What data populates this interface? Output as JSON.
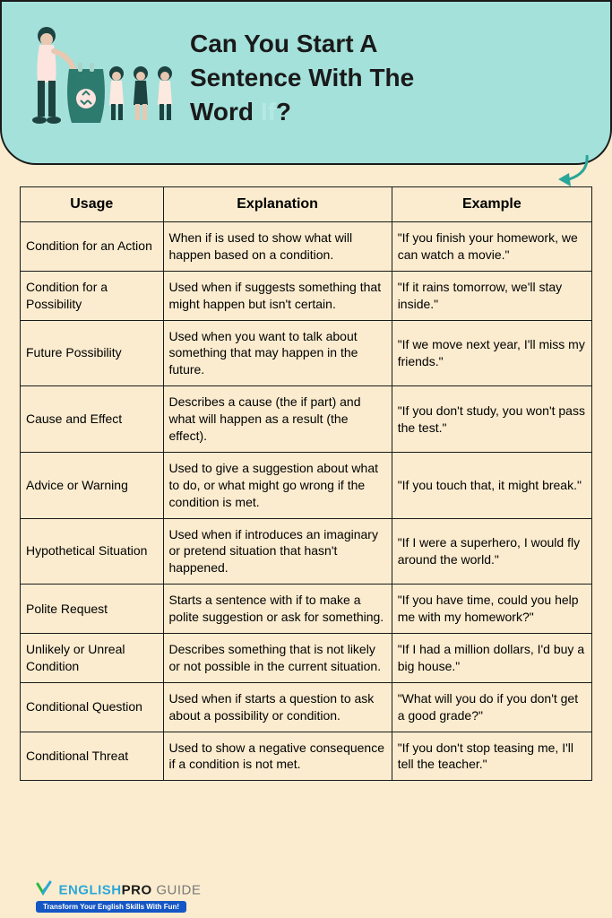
{
  "header": {
    "title_line1": "Can You Start A",
    "title_line2": "Sentence With The",
    "title_line3_pre": "Word ",
    "title_line3_highlight": "If",
    "title_line3_post": "?",
    "bg_color": "#a4e1db",
    "border_color": "#1a1a1a"
  },
  "arrow_color": "#2aa599",
  "illustration_colors": {
    "adult_shirt": "#fde4de",
    "adult_pants": "#1d4340",
    "skin": "#e8c8b0",
    "hair": "#1d4340",
    "bag": "#2d7a6f",
    "child_shirt": "#fce9df"
  },
  "table": {
    "columns": [
      "Usage",
      "Explanation",
      "Example"
    ],
    "col_widths": [
      "25%",
      "40%",
      "35%"
    ],
    "header_fontsize": 16,
    "cell_fontsize": 14,
    "border_color": "#1a1a1a",
    "rows": [
      {
        "usage": "Condition for an Action",
        "explanation": "When if is used to show what will happen based on a condition.",
        "example": "\"If you finish your homework, we can watch a movie.\""
      },
      {
        "usage": "Condition for a Possibility",
        "explanation": "Used when if suggests something that might happen but isn't certain.",
        "example": "\"If it rains tomorrow, we'll stay inside.\""
      },
      {
        "usage": "Future Possibility",
        "explanation": "Used when you want to talk about something that may happen in the future.",
        "example": "\"If we move next year, I'll miss my friends.\""
      },
      {
        "usage": "Cause and Effect",
        "explanation": "Describes a cause (the if part) and what will happen as a result (the effect).",
        "example": "\"If you don't study, you won't pass the test.\""
      },
      {
        "usage": "Advice or Warning",
        "explanation": "Used to give a suggestion about what to do, or what might go wrong if the condition is met.",
        "example": "\"If you touch that, it might break.\""
      },
      {
        "usage": "Hypothetical Situation",
        "explanation": "Used when if introduces an imaginary or pretend situation that hasn't happened.",
        "example": "\"If I were a superhero, I would fly around the world.\""
      },
      {
        "usage": "Polite Request",
        "explanation": "Starts a sentence with if to make a polite suggestion or ask for something.",
        "example": "\"If you have time, could you help me with my homework?\""
      },
      {
        "usage": "Unlikely or Unreal Condition",
        "explanation": "Describes something that is not likely or not possible in the current situation.",
        "example": "\"If I had a million dollars, I'd buy a big house.\""
      },
      {
        "usage": "Conditional Question",
        "explanation": "Used when if starts a question to ask about a possibility or condition.",
        "example": "\"What will you do if you don't get a good grade?\""
      },
      {
        "usage": "Conditional Threat",
        "explanation": "Used to show a negative consequence if a condition is not met.",
        "example": "\"If you don't stop teasing me, I'll tell the teacher.\""
      }
    ]
  },
  "footer": {
    "brand_english": "ENGLISH",
    "brand_pro": "PRO",
    "brand_guide": " GUIDE",
    "tagline": "Transform Your English Skills With Fun!",
    "english_color": "#2aa8d8",
    "pro_color": "#1a1a1a",
    "guide_color": "#7a7a7a",
    "tag_bg": "#1456c4"
  },
  "page_bg": "#fbeccf"
}
